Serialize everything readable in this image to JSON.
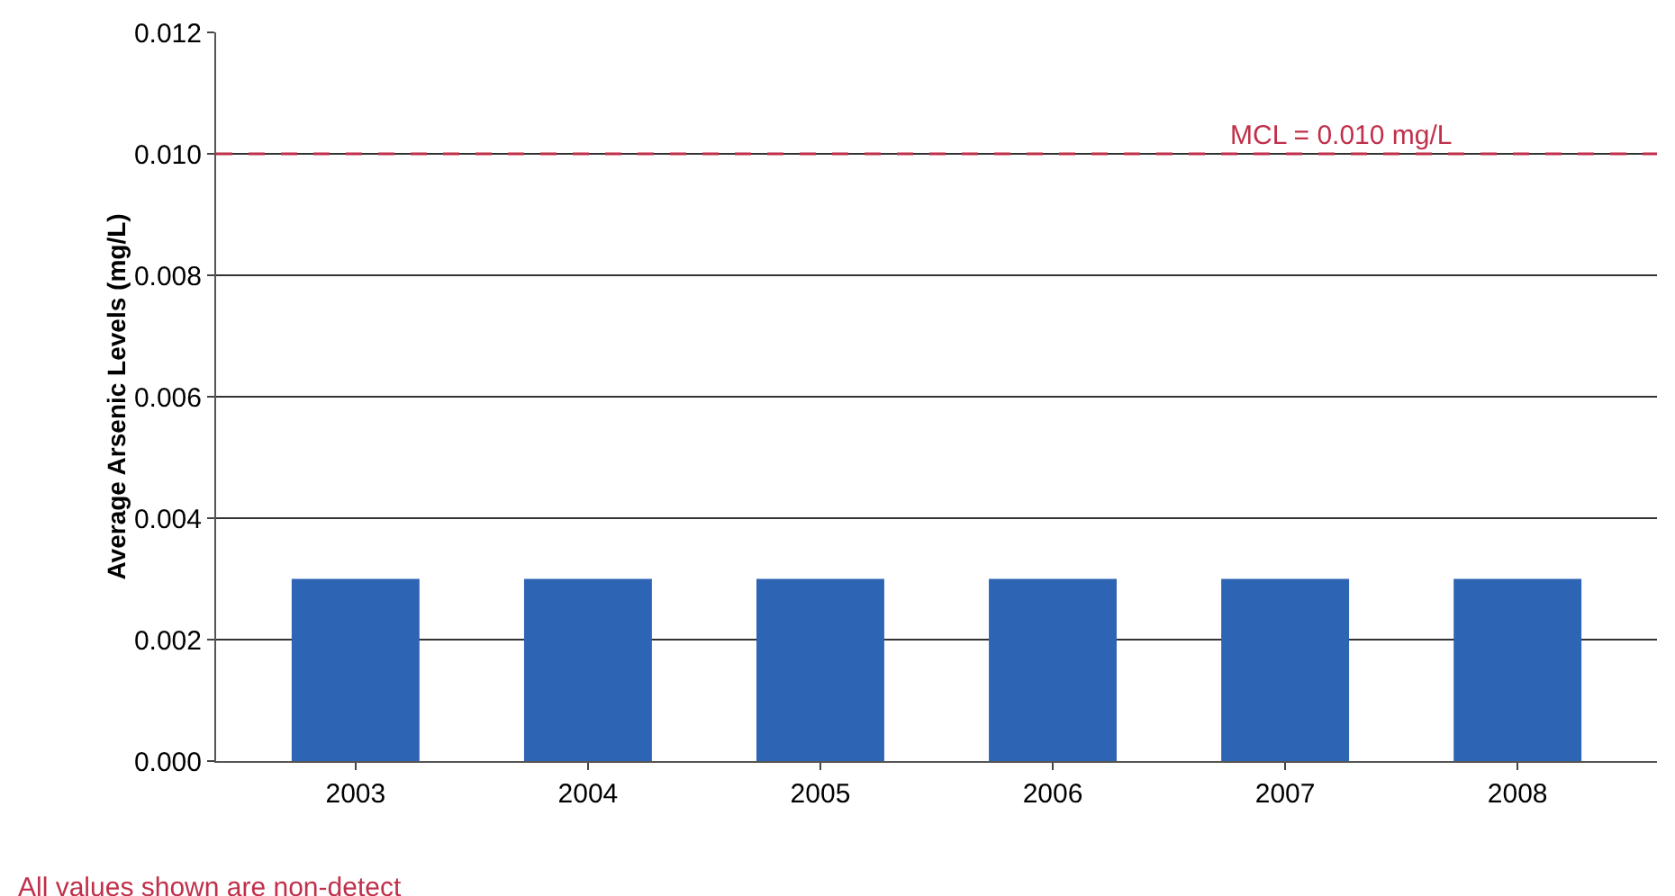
{
  "chart_data": {
    "type": "bar",
    "ylabel": "Average Arsenic Levels (mg/L)",
    "categories": [
      "2003",
      "2004",
      "2005",
      "2006",
      "2007",
      "2008"
    ],
    "values": [
      0.003,
      0.003,
      0.003,
      0.003,
      0.003,
      0.003
    ],
    "color": "#2e64b4",
    "ylim": [
      0,
      0.012
    ],
    "yticks": [
      {
        "value": 0,
        "label": "0.000"
      },
      {
        "value": 0.002,
        "label": "0.002"
      },
      {
        "value": 0.004,
        "label": "0.004"
      },
      {
        "value": 0.006,
        "label": "0.006"
      },
      {
        "value": 0.008,
        "label": "0.008"
      },
      {
        "value": 0.01,
        "label": "0.010"
      },
      {
        "value": 0.012,
        "label": "0.012"
      }
    ],
    "grid": "y",
    "ref_lines": [
      {
        "axis": "y",
        "value": 0.01,
        "label": "MCL = 0.010 mg/L",
        "color": "#c0304a",
        "line_style": "dashed"
      }
    ],
    "annotations": [
      "All values shown are non-detect"
    ]
  }
}
